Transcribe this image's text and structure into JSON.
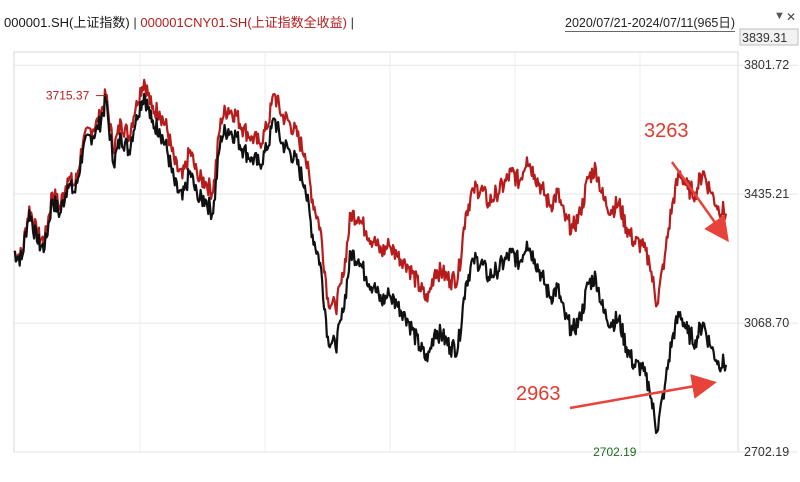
{
  "header": {
    "series1_label": "000001.SH(上证指数)",
    "separator": "|",
    "series2_label": "000001CNY01.SH(上证指数全收益)",
    "separator2": "|",
    "date_range": "2020/07/21-2024/07/11(965日)",
    "caret_icon": "caret-down-icon",
    "close_icon": "close-icon"
  },
  "chart_data": {
    "type": "line",
    "x_start": "2020/07/21",
    "x_end": "2024/07/11",
    "points": 965,
    "ylim": [
      2702.19,
      3839.31
    ],
    "y_ticks": [
      "3801.72",
      "3435.21",
      "3068.70",
      "2702.19"
    ],
    "top_value_label": "3839.31",
    "series": [
      {
        "name": "000001.SH(上证指数)",
        "color": "#111111",
        "values": [
          3270,
          3250,
          3390,
          3300,
          3280,
          3420,
          3380,
          3460,
          3440,
          3560,
          3600,
          3620,
          3700,
          3520,
          3600,
          3560,
          3660,
          3720,
          3640,
          3620,
          3560,
          3460,
          3420,
          3500,
          3420,
          3420,
          3380,
          3600,
          3620,
          3600,
          3560,
          3540,
          3520,
          3560,
          3650,
          3580,
          3560,
          3520,
          3460,
          3320,
          3240,
          3030,
          3000,
          3100,
          3270,
          3250,
          3200,
          3170,
          3130,
          3150,
          3120,
          3100,
          3050,
          3000,
          2960,
          3050,
          3030,
          3000,
          3000,
          3180,
          3250,
          3240,
          3200,
          3220,
          3240,
          3270,
          3240,
          3300,
          3250,
          3200,
          3140,
          3170,
          3080,
          3050,
          3080,
          3180,
          3200,
          3100,
          3070,
          3080,
          3000,
          2950,
          2940,
          2880,
          2760,
          2890,
          3030,
          3100,
          3040,
          3020,
          3070,
          3000,
          2960,
          2950
        ]
      },
      {
        "name": "000001CNY01.SH(上证指数全收益)",
        "color": "#b71c1c",
        "values": [
          3270,
          3260,
          3400,
          3320,
          3300,
          3440,
          3400,
          3480,
          3460,
          3580,
          3620,
          3640,
          3715.37,
          3560,
          3640,
          3600,
          3700,
          3760,
          3680,
          3670,
          3620,
          3520,
          3480,
          3560,
          3480,
          3470,
          3440,
          3650,
          3680,
          3660,
          3620,
          3600,
          3580,
          3620,
          3720,
          3660,
          3640,
          3600,
          3550,
          3420,
          3340,
          3140,
          3110,
          3200,
          3380,
          3370,
          3330,
          3300,
          3270,
          3290,
          3260,
          3250,
          3210,
          3170,
          3130,
          3220,
          3210,
          3190,
          3200,
          3380,
          3450,
          3450,
          3410,
          3440,
          3460,
          3500,
          3470,
          3540,
          3490,
          3450,
          3400,
          3440,
          3360,
          3340,
          3380,
          3480,
          3510,
          3420,
          3390,
          3410,
          3340,
          3300,
          3290,
          3240,
          3120,
          3260,
          3410,
          3500,
          3450,
          3440,
          3500,
          3440,
          3400,
          3380
        ]
      }
    ],
    "annotations": [
      {
        "text": "3715.37",
        "color": "#b71c1c",
        "series": 1,
        "index": 12
      },
      {
        "text": "2702.19",
        "color": "#1b6b1b",
        "series": 0,
        "index": 84
      },
      {
        "text": "3263",
        "color": "#e03a2f",
        "note_style": "large"
      },
      {
        "text": "2963",
        "color": "#e03a2f",
        "note_style": "large"
      }
    ],
    "grid": true,
    "colors": {
      "series1": "#111111",
      "series2": "#b71c1c",
      "arrow": "#e8433a",
      "grid": "#e6e6e6"
    }
  }
}
